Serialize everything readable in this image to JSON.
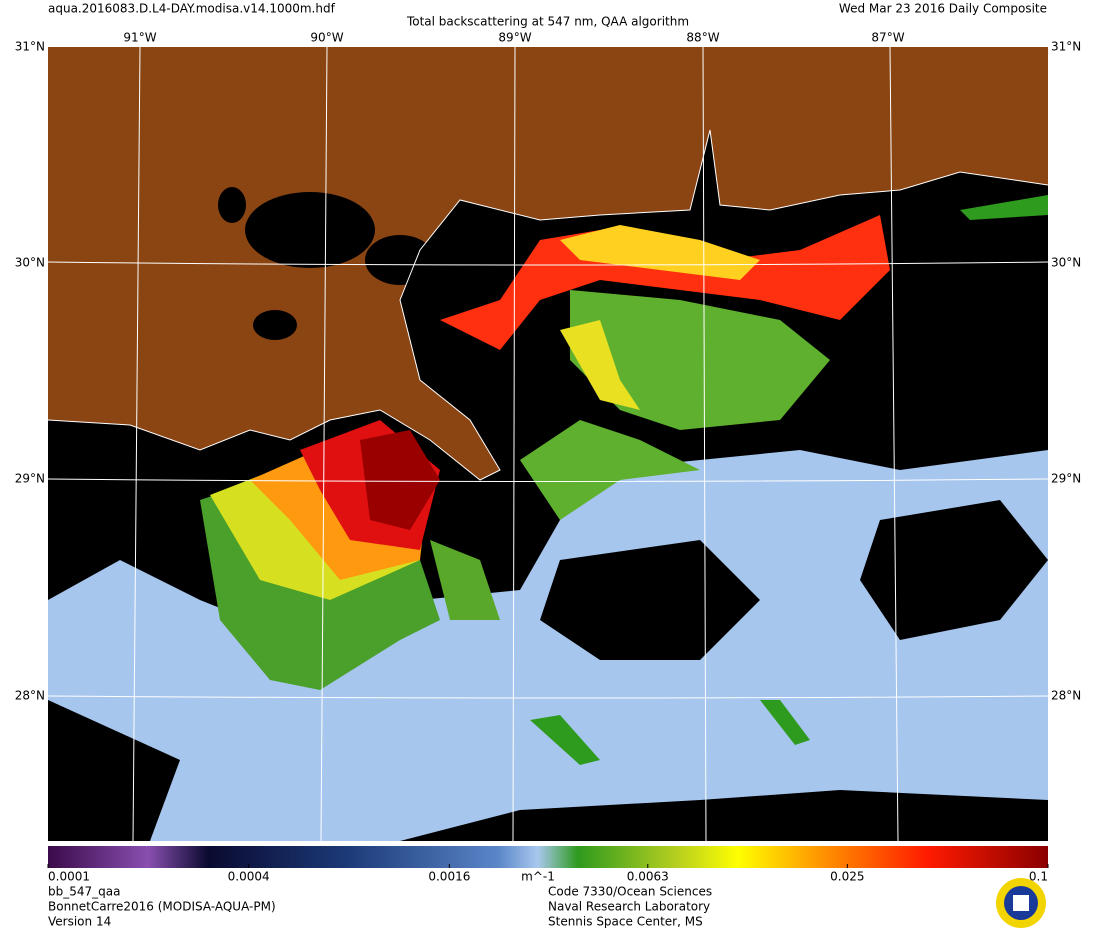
{
  "header": {
    "filename": "aqua.2016083.D.L4-DAY.modisa.v14.1000m.hdf",
    "title": "Total backscattering at 547 nm, QAA algorithm",
    "date": "Wed Mar 23 2016 Daily Composite"
  },
  "graticule": {
    "lon_labels": [
      "91°W",
      "90°W",
      "89°W",
      "88°W",
      "87°W"
    ],
    "lat_labels": [
      "31°N",
      "30°N",
      "29°N",
      "28°N"
    ]
  },
  "colorbar": {
    "ticks": [
      0.0001,
      0.0004,
      0.0016,
      0.0063,
      0.025,
      0.1
    ],
    "range": [
      0.0001,
      0.1
    ],
    "log": true,
    "unit": "m^-1"
  },
  "footer": {
    "left": [
      "bb_547_qaa",
      "BonnetCarre2016 (MODISA-AQUA-PM)",
      "Version 14"
    ],
    "center": [
      "Code 7330/Ocean Sciences",
      "Naval Research Laboratory",
      "Stennis Space Center, MS"
    ]
  }
}
